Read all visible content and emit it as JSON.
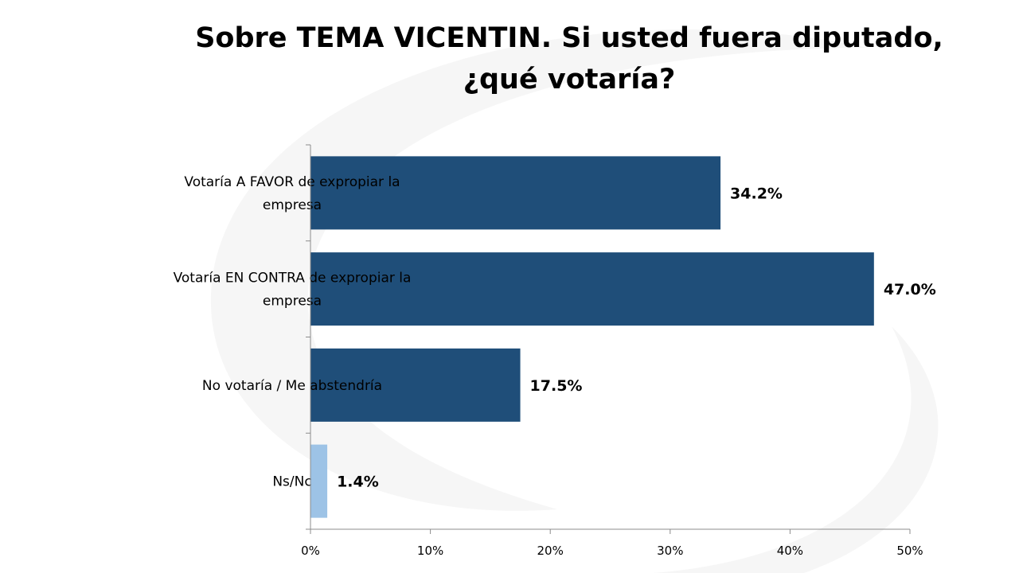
{
  "chart_data": {
    "type": "bar",
    "orientation": "horizontal",
    "title_lines": [
      "Sobre TEMA VICENTIN. Si usted fuera diputado,",
      "¿qué votaría?"
    ],
    "categories": [
      [
        "Votaría A FAVOR de expropiar la",
        "empresa"
      ],
      [
        "Votaría EN CONTRA de expropiar la",
        "empresa"
      ],
      [
        "No votaría / Me abstendría"
      ],
      [
        "Ns/Nc"
      ]
    ],
    "values": [
      34.2,
      47.0,
      17.5,
      1.4
    ],
    "value_labels": [
      "34.2%",
      "47.0%",
      "17.5%",
      "1.4%"
    ],
    "bar_colors": [
      "#1f4e79",
      "#1f4e79",
      "#1f4e79",
      "#9dc3e6"
    ],
    "xlim": [
      0,
      50
    ],
    "xticks": [
      0,
      10,
      20,
      30,
      40,
      50
    ],
    "xtick_labels": [
      "0%",
      "10%",
      "20%",
      "30%",
      "40%",
      "50%"
    ],
    "grid": false,
    "legend": "none"
  }
}
